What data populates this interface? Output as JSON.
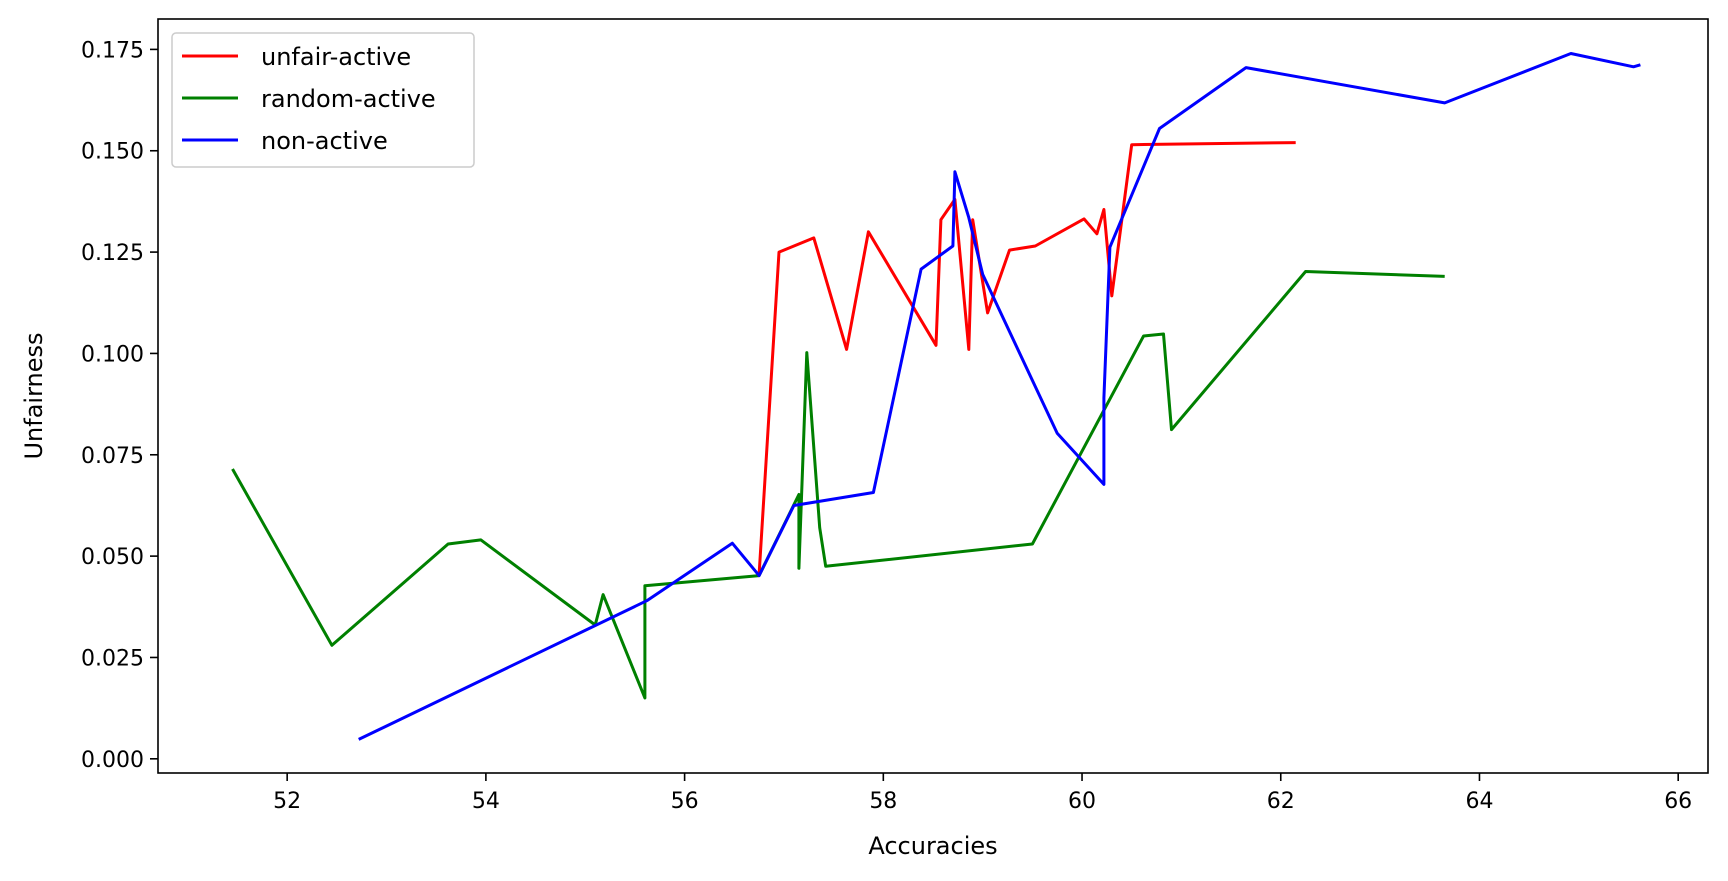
{
  "chart_data": {
    "type": "line",
    "xlabel": "Accuracies",
    "ylabel": "Unfairness",
    "xlim": [
      50.7,
      66.3
    ],
    "ylim": [
      -0.0035,
      0.1825
    ],
    "xticks": [
      52,
      54,
      56,
      58,
      60,
      62,
      64,
      66
    ],
    "xtick_labels": [
      "52",
      "54",
      "56",
      "58",
      "60",
      "62",
      "64",
      "66"
    ],
    "yticks": [
      0.0,
      0.025,
      0.05,
      0.075,
      0.1,
      0.125,
      0.15,
      0.175
    ],
    "ytick_labels": [
      "0.000",
      "0.025",
      "0.050",
      "0.075",
      "0.100",
      "0.125",
      "0.150",
      "0.175"
    ],
    "grid": false,
    "legend_position": "top-left",
    "series": [
      {
        "name": "unfair-active",
        "color": "#ff0000",
        "points": [
          [
            56.75,
            0.0455
          ],
          [
            56.95,
            0.125
          ],
          [
            57.3,
            0.1285
          ],
          [
            57.63,
            0.101
          ],
          [
            57.85,
            0.13
          ],
          [
            58.53,
            0.102
          ],
          [
            58.58,
            0.133
          ],
          [
            58.72,
            0.138
          ],
          [
            58.86,
            0.101
          ],
          [
            58.9,
            0.133
          ],
          [
            59.05,
            0.11
          ],
          [
            59.27,
            0.1255
          ],
          [
            59.53,
            0.1265
          ],
          [
            60.02,
            0.1332
          ],
          [
            60.15,
            0.1295
          ],
          [
            60.22,
            0.1355
          ],
          [
            60.3,
            0.1142
          ],
          [
            60.5,
            0.1515
          ],
          [
            62.15,
            0.152
          ]
        ]
      },
      {
        "name": "random-active",
        "color": "#008000",
        "points": [
          [
            51.45,
            0.0715
          ],
          [
            52.45,
            0.028
          ],
          [
            53.62,
            0.053
          ],
          [
            53.95,
            0.054
          ],
          [
            55.1,
            0.033
          ],
          [
            55.18,
            0.0405
          ],
          [
            55.6,
            0.015
          ],
          [
            55.6,
            0.0427
          ],
          [
            56.75,
            0.0452
          ],
          [
            57.15,
            0.0652
          ],
          [
            57.15,
            0.047
          ],
          [
            57.23,
            0.1002
          ],
          [
            57.36,
            0.057
          ],
          [
            57.42,
            0.0475
          ],
          [
            59.5,
            0.053
          ],
          [
            60.62,
            0.1043
          ],
          [
            60.82,
            0.1048
          ],
          [
            60.9,
            0.0812
          ],
          [
            62.25,
            0.1202
          ],
          [
            63.65,
            0.119
          ]
        ]
      },
      {
        "name": "non-active",
        "color": "#0000ff",
        "points": [
          [
            52.72,
            0.0048
          ],
          [
            55.62,
            0.039
          ],
          [
            56.48,
            0.0532
          ],
          [
            56.75,
            0.0452
          ],
          [
            57.1,
            0.0625
          ],
          [
            57.9,
            0.0657
          ],
          [
            58.38,
            0.1208
          ],
          [
            58.7,
            0.1265
          ],
          [
            58.72,
            0.1448
          ],
          [
            58.86,
            0.1335
          ],
          [
            59.0,
            0.1195
          ],
          [
            59.75,
            0.0803
          ],
          [
            60.22,
            0.0677
          ],
          [
            60.22,
            0.089
          ],
          [
            60.28,
            0.1262
          ],
          [
            60.78,
            0.1555
          ],
          [
            61.65,
            0.1705
          ],
          [
            63.65,
            0.1618
          ],
          [
            64.92,
            0.174
          ],
          [
            65.55,
            0.1707
          ],
          [
            65.62,
            0.1712
          ]
        ]
      }
    ]
  }
}
